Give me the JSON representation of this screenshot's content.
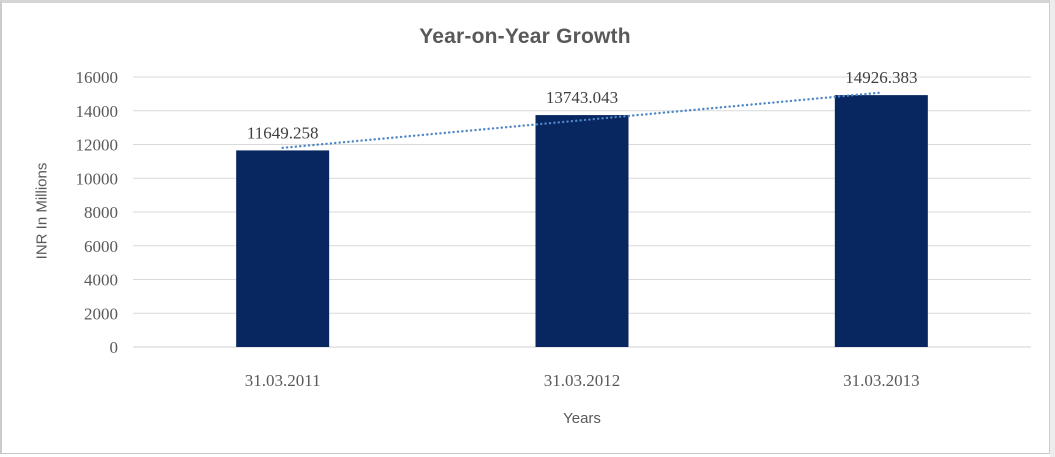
{
  "frame": {
    "background": "#ffffff",
    "border_color": "#d2d2d2"
  },
  "chart_data": {
    "type": "bar",
    "title": "Year-on-Year Growth",
    "categories": [
      "31.03.2011",
      "31.03.2012",
      "31.03.2013"
    ],
    "values": [
      11649.258,
      13743.043,
      14926.383
    ],
    "data_labels": [
      "11649.258",
      "13743.043",
      "14926.383"
    ],
    "xlabel": "Years",
    "ylabel": "INR In Millions",
    "ylim": [
      0,
      16000
    ],
    "ytick_step": 2000,
    "yticks": [
      0,
      2000,
      4000,
      6000,
      8000,
      10000,
      12000,
      14000,
      16000
    ],
    "grid": true,
    "legend_position": "none",
    "trendline": {
      "type": "linear",
      "style": "dotted",
      "color": "#4f86c6"
    },
    "colors": {
      "bar": "#082660",
      "gridline": "#d9d9d9",
      "axis_line": "#d0d0d0",
      "title_text": "#595959",
      "tick_text": "#595959",
      "data_label_text": "#3f3f3f",
      "axis_title_text": "#595959"
    }
  }
}
